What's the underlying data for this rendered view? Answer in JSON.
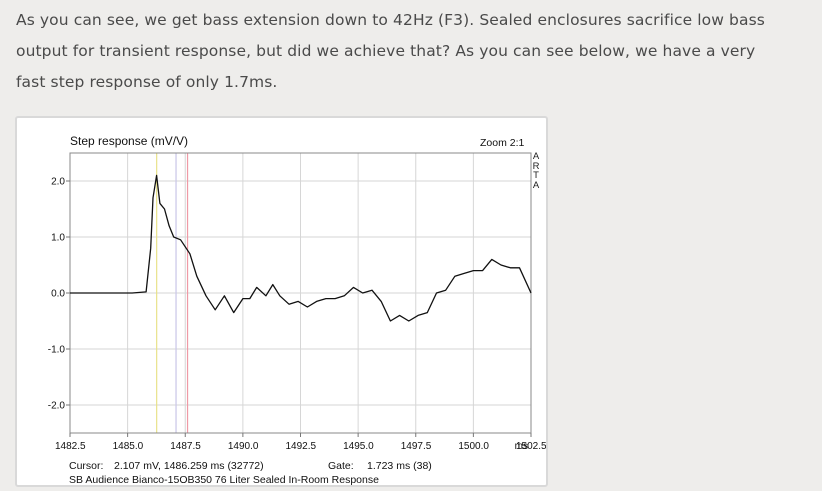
{
  "article": {
    "lines": [
      "As you can see, we get bass extension down to 42Hz (F3). Sealed enclosures sacrifice low bass",
      "output for transient response, but did we achieve that? As you can see below, we have a very",
      "fast step response of only 1.7ms."
    ]
  },
  "figure": {
    "zoom_label": "Zoom 2:1",
    "watermark_letters": [
      "A",
      "R",
      "T",
      "A"
    ],
    "cursor_label": "Cursor:",
    "cursor_value": "2.107 mV, 1486.259 ms (32772)",
    "gate_label": "Gate:",
    "gate_value": "1.723 ms (38)",
    "caption": "SB Audience Bianco-15OB350 76 Liter Sealed In-Room Response"
  },
  "chart_data": {
    "type": "line",
    "title": "Step response (mV/V)",
    "xlabel": "ms",
    "ylabel": "",
    "xlim": [
      1482.5,
      1502.5
    ],
    "ylim": [
      -2.5,
      2.5
    ],
    "x_ticks": [
      "1482.5",
      "1485.0",
      "1487.5",
      "1490.0",
      "1492.5",
      "1495.0",
      "1497.5",
      "1500.0",
      "1502.5"
    ],
    "x_tick_values": [
      1482.5,
      1485.0,
      1487.5,
      1490.0,
      1492.5,
      1495.0,
      1497.5,
      1500.0,
      1502.5
    ],
    "y_ticks": [
      "2.0",
      "1.0",
      "0.0",
      "-1.0",
      "-2.0"
    ],
    "y_tick_values": [
      2.0,
      1.0,
      0.0,
      -1.0,
      -2.0
    ],
    "grid": true,
    "markers": [
      {
        "name": "cursor",
        "x": 1486.26,
        "color": "#e8e28a"
      },
      {
        "name": "gate-start",
        "x": 1487.1,
        "color": "#c9c6e8"
      },
      {
        "name": "gate-end",
        "x": 1487.6,
        "color": "#ef9aa6"
      }
    ],
    "series": [
      {
        "color": "#111111",
        "x": [
          1482.5,
          1484.0,
          1485.2,
          1485.8,
          1486.0,
          1486.1,
          1486.259,
          1486.4,
          1486.6,
          1486.8,
          1487.0,
          1487.3,
          1487.7,
          1488.0,
          1488.4,
          1488.8,
          1489.2,
          1489.6,
          1490.0,
          1490.3,
          1490.6,
          1491.0,
          1491.3,
          1491.6,
          1492.0,
          1492.4,
          1492.8,
          1493.2,
          1493.6,
          1494.0,
          1494.4,
          1494.8,
          1495.2,
          1495.6,
          1496.0,
          1496.4,
          1496.8,
          1497.2,
          1497.6,
          1498.0,
          1498.4,
          1498.8,
          1499.2,
          1499.6,
          1500.0,
          1500.4,
          1500.8,
          1501.2,
          1501.6,
          1502.0,
          1502.5
        ],
        "y": [
          0.0,
          0.0,
          0.0,
          0.02,
          0.8,
          1.7,
          2.1,
          1.6,
          1.5,
          1.2,
          1.0,
          0.95,
          0.7,
          0.3,
          -0.05,
          -0.3,
          -0.05,
          -0.35,
          -0.1,
          -0.1,
          0.1,
          -0.05,
          0.15,
          -0.05,
          -0.2,
          -0.15,
          -0.25,
          -0.15,
          -0.1,
          -0.1,
          -0.05,
          0.1,
          0.0,
          0.05,
          -0.15,
          -0.5,
          -0.4,
          -0.5,
          -0.4,
          -0.35,
          0.0,
          0.05,
          0.3,
          0.35,
          0.4,
          0.4,
          0.6,
          0.5,
          0.45,
          0.45,
          0.0
        ]
      }
    ]
  }
}
